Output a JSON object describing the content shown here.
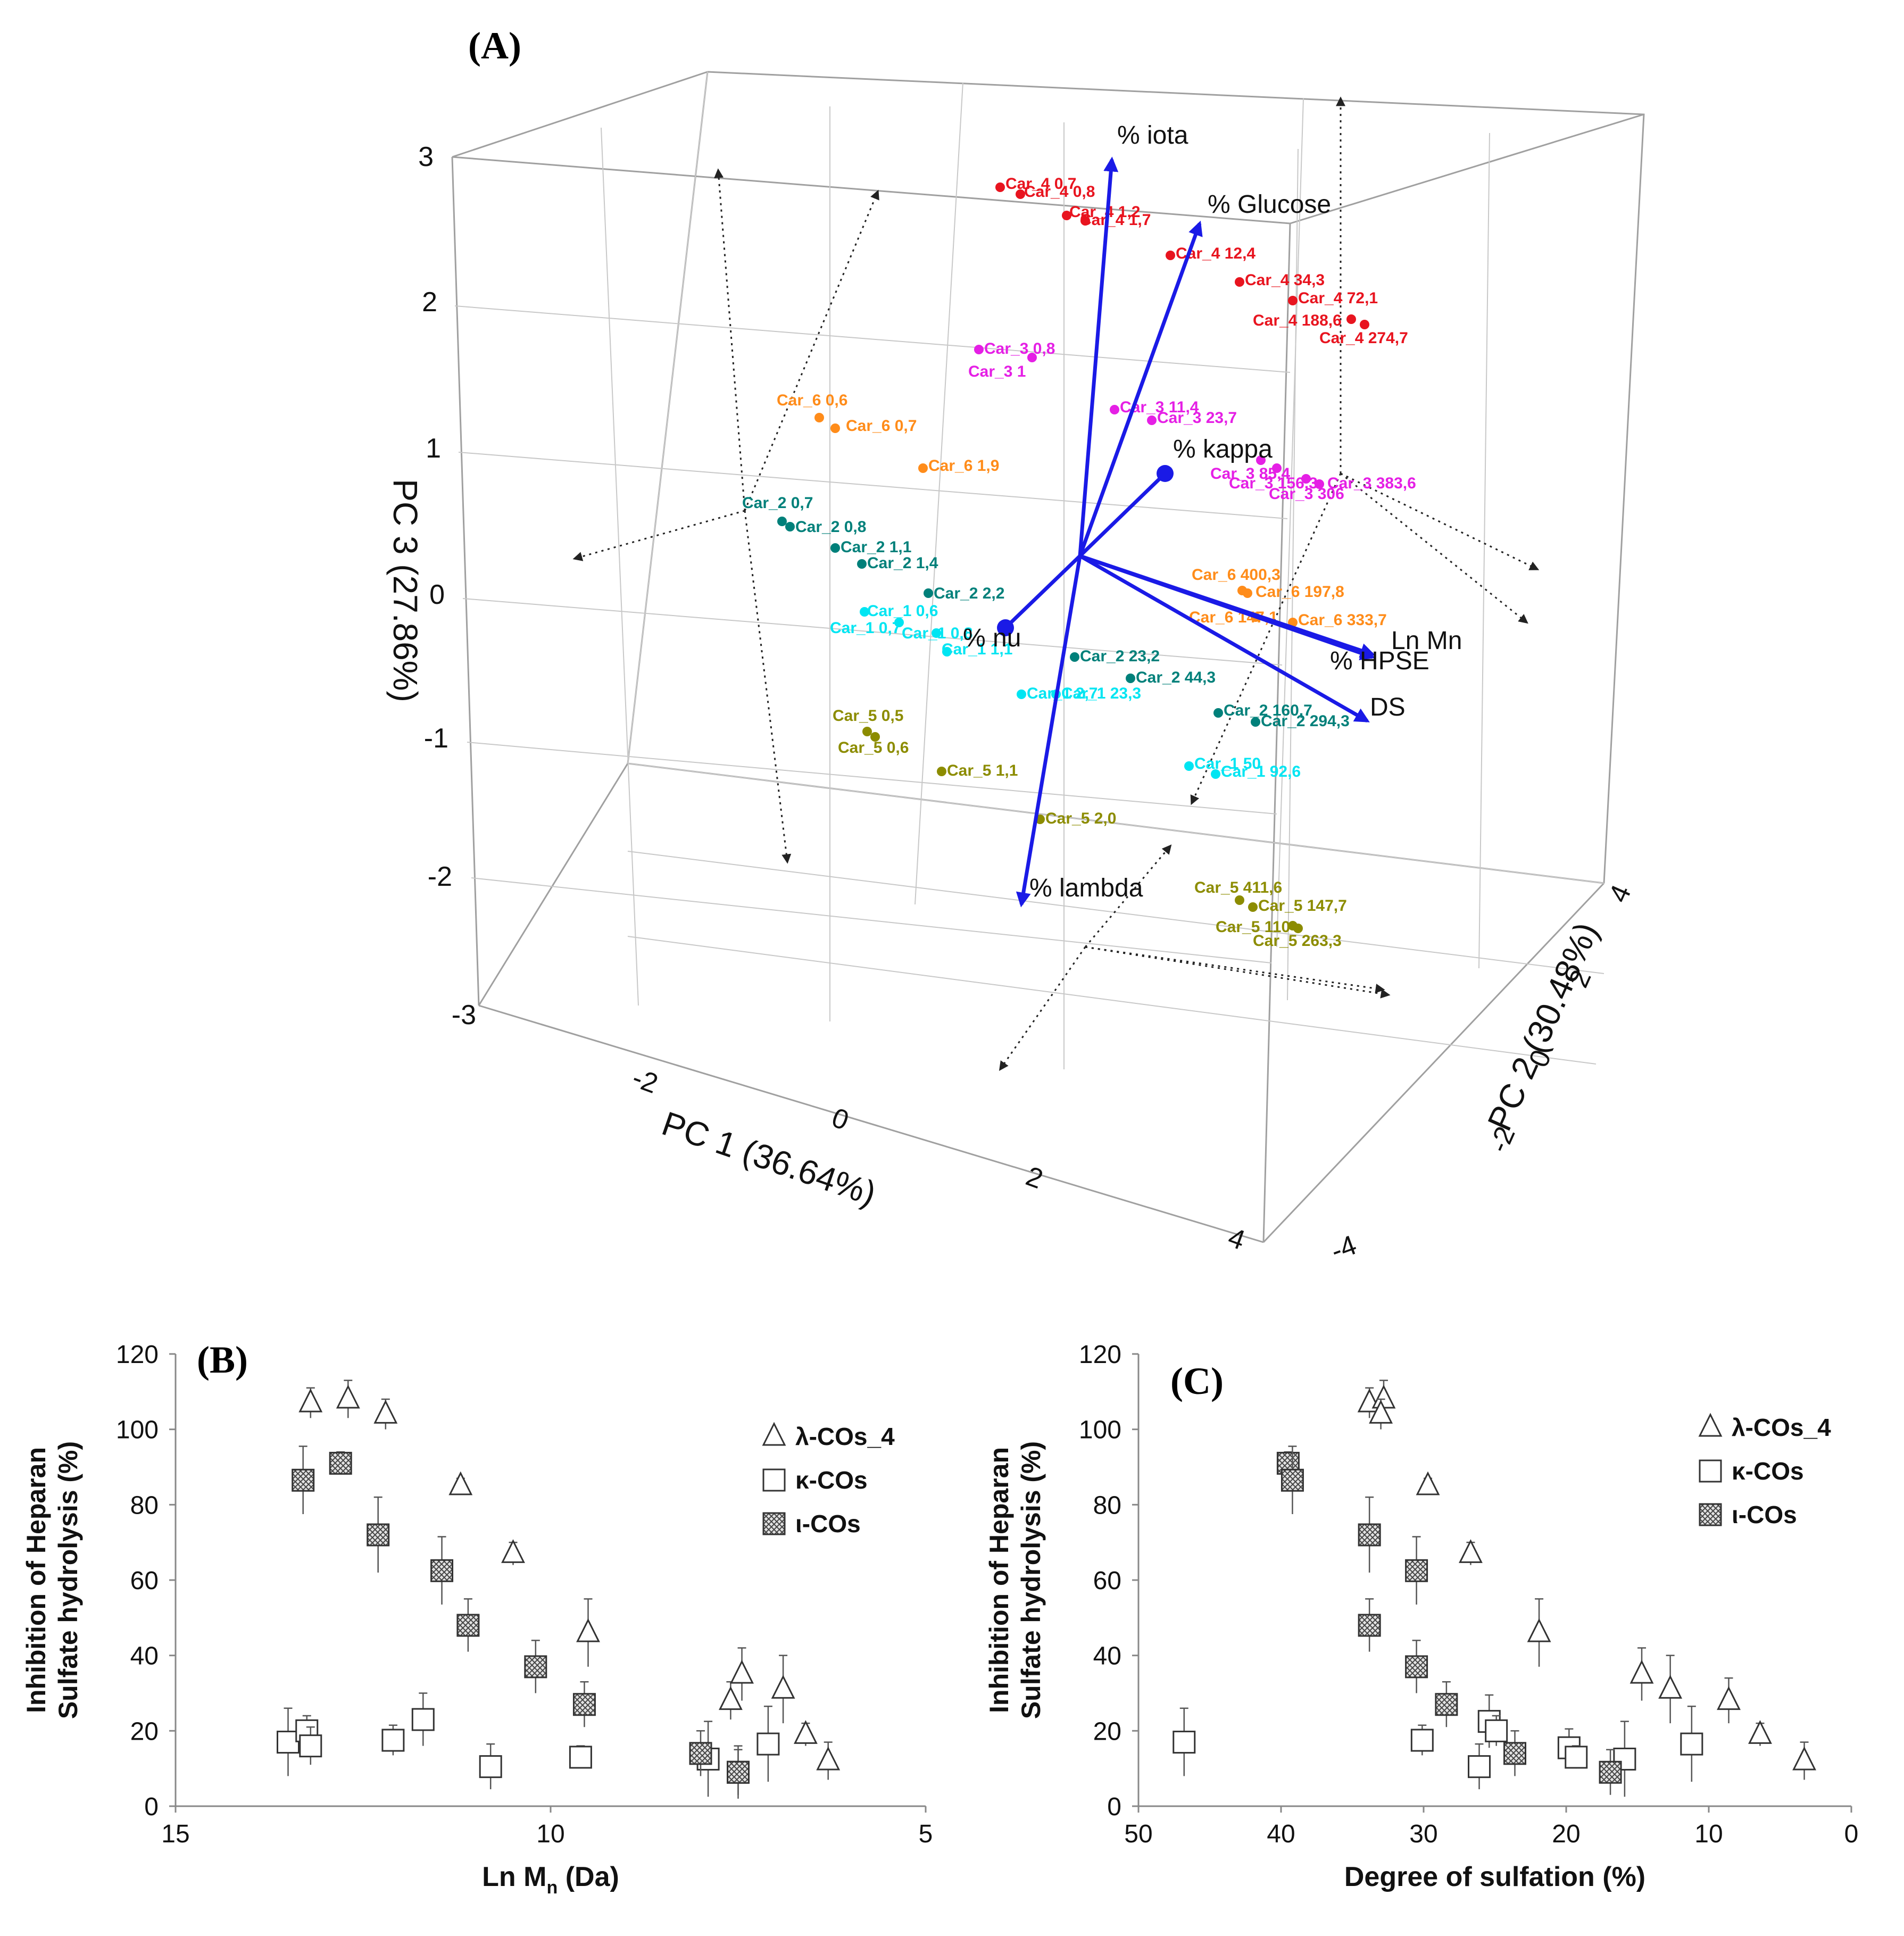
{
  "chart_data": [
    {
      "panel": "(A)",
      "type": "scatter",
      "subtype": "3d-pca-biplot",
      "xlabel": "PC 1 (36.64%)",
      "ylabel": "PC 2 (30.48%)",
      "zlabel": "PC 3 (27.86%)",
      "xlim": [
        -4,
        4
      ],
      "ylim": [
        -4,
        4
      ],
      "zlim": [
        -3,
        3
      ],
      "xticks": [
        "-2",
        "0",
        "2",
        "4"
      ],
      "yticks": [
        "-4",
        "-2",
        "0",
        "2",
        "4"
      ],
      "zticks": [
        "-3",
        "-2",
        "-1",
        "0",
        "1",
        "2",
        "3"
      ],
      "loadings": [
        {
          "label": "% iota",
          "x": 0.0,
          "y": 0.0,
          "z": 2.85
        },
        {
          "label": "% Glucose",
          "x": 1.9,
          "y": 0.0,
          "z": 2.75
        },
        {
          "label": "% kappa",
          "x": 1.5,
          "y": 0.3,
          "z": 1.2
        },
        {
          "label": "% nu",
          "x": -1.1,
          "y": 0.0,
          "z": -0.4
        },
        {
          "label": "Ln Mn",
          "x": 3.4,
          "y": 0.0,
          "z": -0.3
        },
        {
          "label": "% HPSE",
          "x": 3.3,
          "y": 0.0,
          "z": -0.9
        },
        {
          "label": "DS",
          "x": 3.2,
          "y": 0.0,
          "z": -0.9
        },
        {
          "label": "% lambda",
          "x": 0.0,
          "y": 0.0,
          "z": -2.5
        }
      ],
      "groups": [
        {
          "name": "Car_4",
          "color": "#e8141f",
          "points": [
            {
              "label": "Car_4 0,7"
            },
            {
              "label": "Car_4 0,8"
            },
            {
              "label": "Car_4 1,2"
            },
            {
              "label": "Car_4 1,7"
            },
            {
              "label": "Car_4 12,4"
            },
            {
              "label": "Car_4 34,3"
            },
            {
              "label": "Car_4 72,1"
            },
            {
              "label": "Car_4 188,6"
            },
            {
              "label": "Car_4 274,7"
            }
          ]
        },
        {
          "name": "Car_3",
          "color": "#e51fe5",
          "points": [
            {
              "label": "Car_3 0,8"
            },
            {
              "label": "Car_3 1"
            },
            {
              "label": "Car_3 11,4"
            },
            {
              "label": "Car_3 23,7"
            },
            {
              "label": "Car_3 85,4"
            },
            {
              "label": "Car_3 156,3"
            },
            {
              "label": "Car_3 306"
            },
            {
              "label": "Car_3 383,6"
            }
          ]
        },
        {
          "name": "Car_6",
          "color": "#ff8c1a",
          "points": [
            {
              "label": "Car_6 0,6"
            },
            {
              "label": "Car_6 0,7"
            },
            {
              "label": "Car_6 1,9"
            },
            {
              "label": "Car_6 400,3"
            },
            {
              "label": "Car_6 197,8"
            },
            {
              "label": "Car_6 147,1"
            },
            {
              "label": "Car_6 333,7"
            }
          ]
        },
        {
          "name": "Car_2",
          "color": "#00807a",
          "points": [
            {
              "label": "Car_2 0,7"
            },
            {
              "label": "Car_2 0,8"
            },
            {
              "label": "Car_2 1,1"
            },
            {
              "label": "Car_2 1,4"
            },
            {
              "label": "Car_2 2,2"
            },
            {
              "label": "Car_2 23,2"
            },
            {
              "label": "Car_2 44,3"
            },
            {
              "label": "Car_2 160,7"
            },
            {
              "label": "Car_2 294,3"
            }
          ]
        },
        {
          "name": "Car_1",
          "color": "#00e5f2",
          "points": [
            {
              "label": "Car_1 0,6"
            },
            {
              "label": "Car_1 0,7"
            },
            {
              "label": "Car_1 0,8"
            },
            {
              "label": "Car_1 1,1"
            },
            {
              "label": "Car_1 2,7"
            },
            {
              "label": "Car_1 23,3"
            },
            {
              "label": "Car_1 50"
            },
            {
              "label": "Car_1 92,6"
            }
          ]
        },
        {
          "name": "Car_5",
          "color": "#8c8c00",
          "points": [
            {
              "label": "Car_5 0,5"
            },
            {
              "label": "Car_5 0,6"
            },
            {
              "label": "Car_5 1,1"
            },
            {
              "label": "Car_5 2,0"
            },
            {
              "label": "Car_5 411,6"
            },
            {
              "label": "Car_5 147,7"
            },
            {
              "label": "Car_5 110"
            },
            {
              "label": "Car_5 263,3"
            }
          ]
        }
      ]
    },
    {
      "panel": "(B)",
      "type": "scatter",
      "xlabel_main": "Ln M",
      "xlabel_sub": "n",
      "xlabel_tail": " (Da)",
      "ylabel_line1": "Inhibition of Heparan",
      "ylabel_line2": "Sulfate hydrolysis (%)",
      "xlim": [
        15,
        5
      ],
      "ylim": [
        0,
        120
      ],
      "xticks": [
        15,
        10,
        5
      ],
      "yticks": [
        0,
        20,
        40,
        60,
        80,
        100,
        120
      ],
      "series": [
        {
          "name": "λ-COs_4",
          "marker": "triangle",
          "points": [
            {
              "x": 13.2,
              "y": 107,
              "err": 4
            },
            {
              "x": 12.7,
              "y": 108,
              "err": 5
            },
            {
              "x": 12.2,
              "y": 104,
              "err": 4
            },
            {
              "x": 11.2,
              "y": 85,
              "err": 2
            },
            {
              "x": 10.5,
              "y": 67,
              "err": 3
            },
            {
              "x": 9.5,
              "y": 46,
              "err": 9
            },
            {
              "x": 7.6,
              "y": 28,
              "err": 5
            },
            {
              "x": 7.45,
              "y": 35,
              "err": 7
            },
            {
              "x": 6.9,
              "y": 31,
              "err": 9
            },
            {
              "x": 6.6,
              "y": 19,
              "err": 3
            },
            {
              "x": 6.3,
              "y": 12,
              "err": 5
            }
          ]
        },
        {
          "name": "κ-COs",
          "marker": "square",
          "points": [
            {
              "x": 13.5,
              "y": 17,
              "err": 9
            },
            {
              "x": 13.25,
              "y": 20,
              "err": 4
            },
            {
              "x": 13.2,
              "y": 16,
              "err": 5
            },
            {
              "x": 12.1,
              "y": 17.5,
              "err": 4
            },
            {
              "x": 11.7,
              "y": 23,
              "err": 7
            },
            {
              "x": 10.8,
              "y": 10.5,
              "err": 6
            },
            {
              "x": 9.6,
              "y": 13,
              "err": 3
            },
            {
              "x": 7.9,
              "y": 12.5,
              "err": 10
            },
            {
              "x": 7.5,
              "y": 9,
              "err": 7
            },
            {
              "x": 7.1,
              "y": 16.5,
              "err": 10
            }
          ]
        },
        {
          "name": "ι-COs",
          "marker": "hatched-square",
          "points": [
            {
              "x": 13.3,
              "y": 86.5,
              "err": 9
            },
            {
              "x": 12.8,
              "y": 91,
              "err": 3
            },
            {
              "x": 12.3,
              "y": 72,
              "err": 10
            },
            {
              "x": 11.45,
              "y": 62.5,
              "err": 9
            },
            {
              "x": 11.1,
              "y": 48,
              "err": 7
            },
            {
              "x": 10.2,
              "y": 37,
              "err": 7
            },
            {
              "x": 9.55,
              "y": 27,
              "err": 6
            },
            {
              "x": 8.0,
              "y": 14,
              "err": 6
            },
            {
              "x": 7.5,
              "y": 9,
              "err": 6
            }
          ]
        }
      ]
    },
    {
      "panel": "(C)",
      "type": "scatter",
      "xlabel": "Degree of sulfation (%)",
      "ylabel_line1": "Inhibition of Heparan",
      "ylabel_line2": "Sulfate hydrolysis (%)",
      "xlim": [
        50,
        0
      ],
      "ylim": [
        0,
        120
      ],
      "xticks": [
        50,
        40,
        30,
        20,
        10,
        0
      ],
      "yticks": [
        0,
        20,
        40,
        60,
        80,
        100,
        120
      ],
      "series": [
        {
          "name": "λ-COs_4",
          "marker": "triangle",
          "points": [
            {
              "x": 33.8,
              "y": 107,
              "err": 4
            },
            {
              "x": 32.8,
              "y": 108,
              "err": 5
            },
            {
              "x": 33.0,
              "y": 104,
              "err": 4
            },
            {
              "x": 29.7,
              "y": 85,
              "err": 2
            },
            {
              "x": 26.7,
              "y": 67,
              "err": 3
            },
            {
              "x": 21.9,
              "y": 46,
              "err": 9
            },
            {
              "x": 14.7,
              "y": 35,
              "err": 7
            },
            {
              "x": 12.7,
              "y": 31,
              "err": 9
            },
            {
              "x": 8.6,
              "y": 28,
              "err": 6
            },
            {
              "x": 6.4,
              "y": 19,
              "err": 3
            },
            {
              "x": 3.3,
              "y": 12,
              "err": 5
            }
          ]
        },
        {
          "name": "κ-COs",
          "marker": "square",
          "points": [
            {
              "x": 46.8,
              "y": 17,
              "err": 9
            },
            {
              "x": 30.1,
              "y": 17.5,
              "err": 4
            },
            {
              "x": 26.1,
              "y": 10.5,
              "err": 6
            },
            {
              "x": 25.4,
              "y": 22.5,
              "err": 7
            },
            {
              "x": 24.9,
              "y": 20,
              "err": 4
            },
            {
              "x": 19.8,
              "y": 15.5,
              "err": 5
            },
            {
              "x": 19.3,
              "y": 13,
              "err": 3
            },
            {
              "x": 15.9,
              "y": 12.5,
              "err": 10
            },
            {
              "x": 11.2,
              "y": 16.5,
              "err": 10
            }
          ]
        },
        {
          "name": "ι-COs",
          "marker": "hatched-square",
          "points": [
            {
              "x": 39.5,
              "y": 91,
              "err": 3
            },
            {
              "x": 39.2,
              "y": 86.5,
              "err": 9
            },
            {
              "x": 33.8,
              "y": 72,
              "err": 10
            },
            {
              "x": 33.8,
              "y": 48,
              "err": 7
            },
            {
              "x": 30.5,
              "y": 62.5,
              "err": 9
            },
            {
              "x": 30.5,
              "y": 37,
              "err": 7
            },
            {
              "x": 28.4,
              "y": 27,
              "err": 6
            },
            {
              "x": 23.6,
              "y": 14,
              "err": 6
            },
            {
              "x": 16.9,
              "y": 9,
              "err": 6
            }
          ]
        }
      ]
    }
  ]
}
